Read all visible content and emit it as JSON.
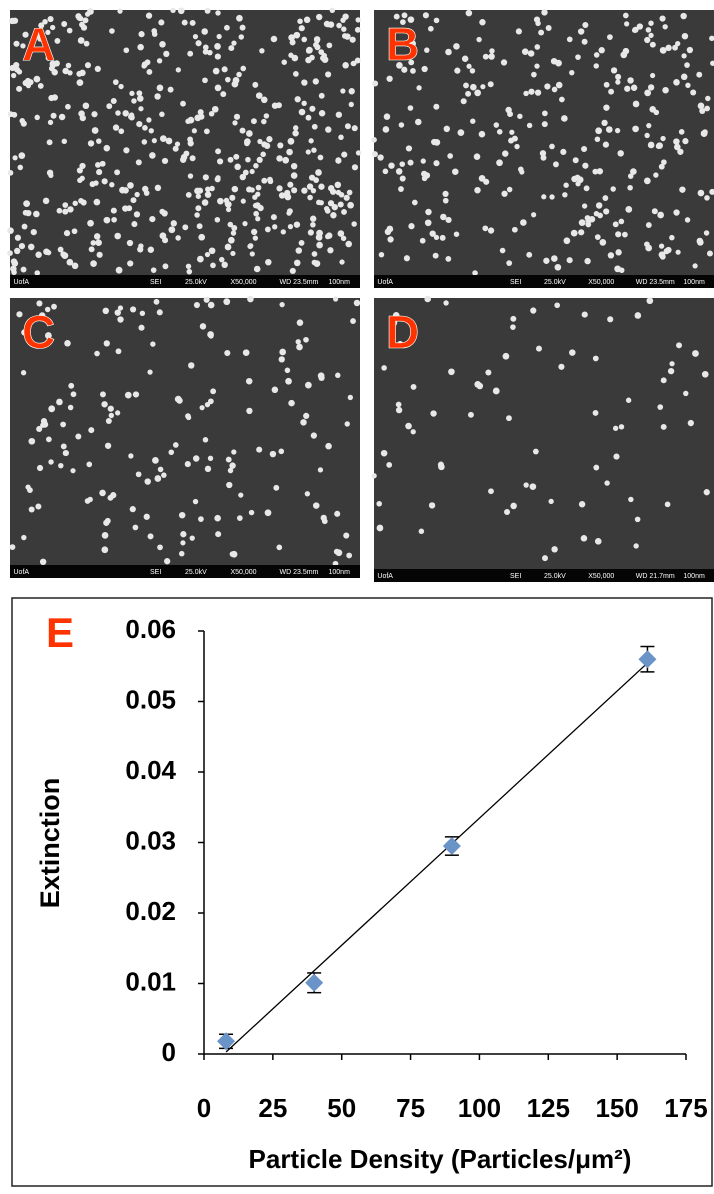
{
  "panels": [
    {
      "label": "A",
      "info": [
        "UofA",
        "SEI",
        "25.0kV",
        "X50,000",
        "WD 23.5mm",
        "100nm"
      ]
    },
    {
      "label": "B",
      "info": [
        "UofA",
        "SEI",
        "25.0kV",
        "X50,000",
        "WD 23.5mm",
        "100nm"
      ]
    },
    {
      "label": "C",
      "info": [
        "UofA",
        "SEI",
        "25.0kV",
        "X50,000",
        "WD 23.5mm",
        "100nm"
      ]
    },
    {
      "label": "D",
      "info": [
        "UofA",
        "SEI",
        "25.0kV",
        "X50,000",
        "WD 21.7mm",
        "100nm"
      ]
    }
  ],
  "chart_data": {
    "type": "scatter",
    "label": "E",
    "x_label": "Particle Density (Particles/μm²)",
    "y_label": "Extinction",
    "x": [
      8,
      40,
      90,
      161
    ],
    "values": [
      0.0018,
      0.0101,
      0.0295,
      0.056
    ],
    "errors": [
      0.001,
      0.0014,
      0.0013,
      0.0018
    ],
    "color": "#6a93c8",
    "trendline": true,
    "xlim": [
      0,
      175
    ],
    "xticks": [
      0,
      25,
      50,
      75,
      100,
      125,
      150,
      175
    ],
    "ylim": [
      0,
      0.06
    ],
    "yticks": [
      0,
      0.01,
      0.02,
      0.03,
      0.04,
      0.05,
      0.06
    ]
  }
}
